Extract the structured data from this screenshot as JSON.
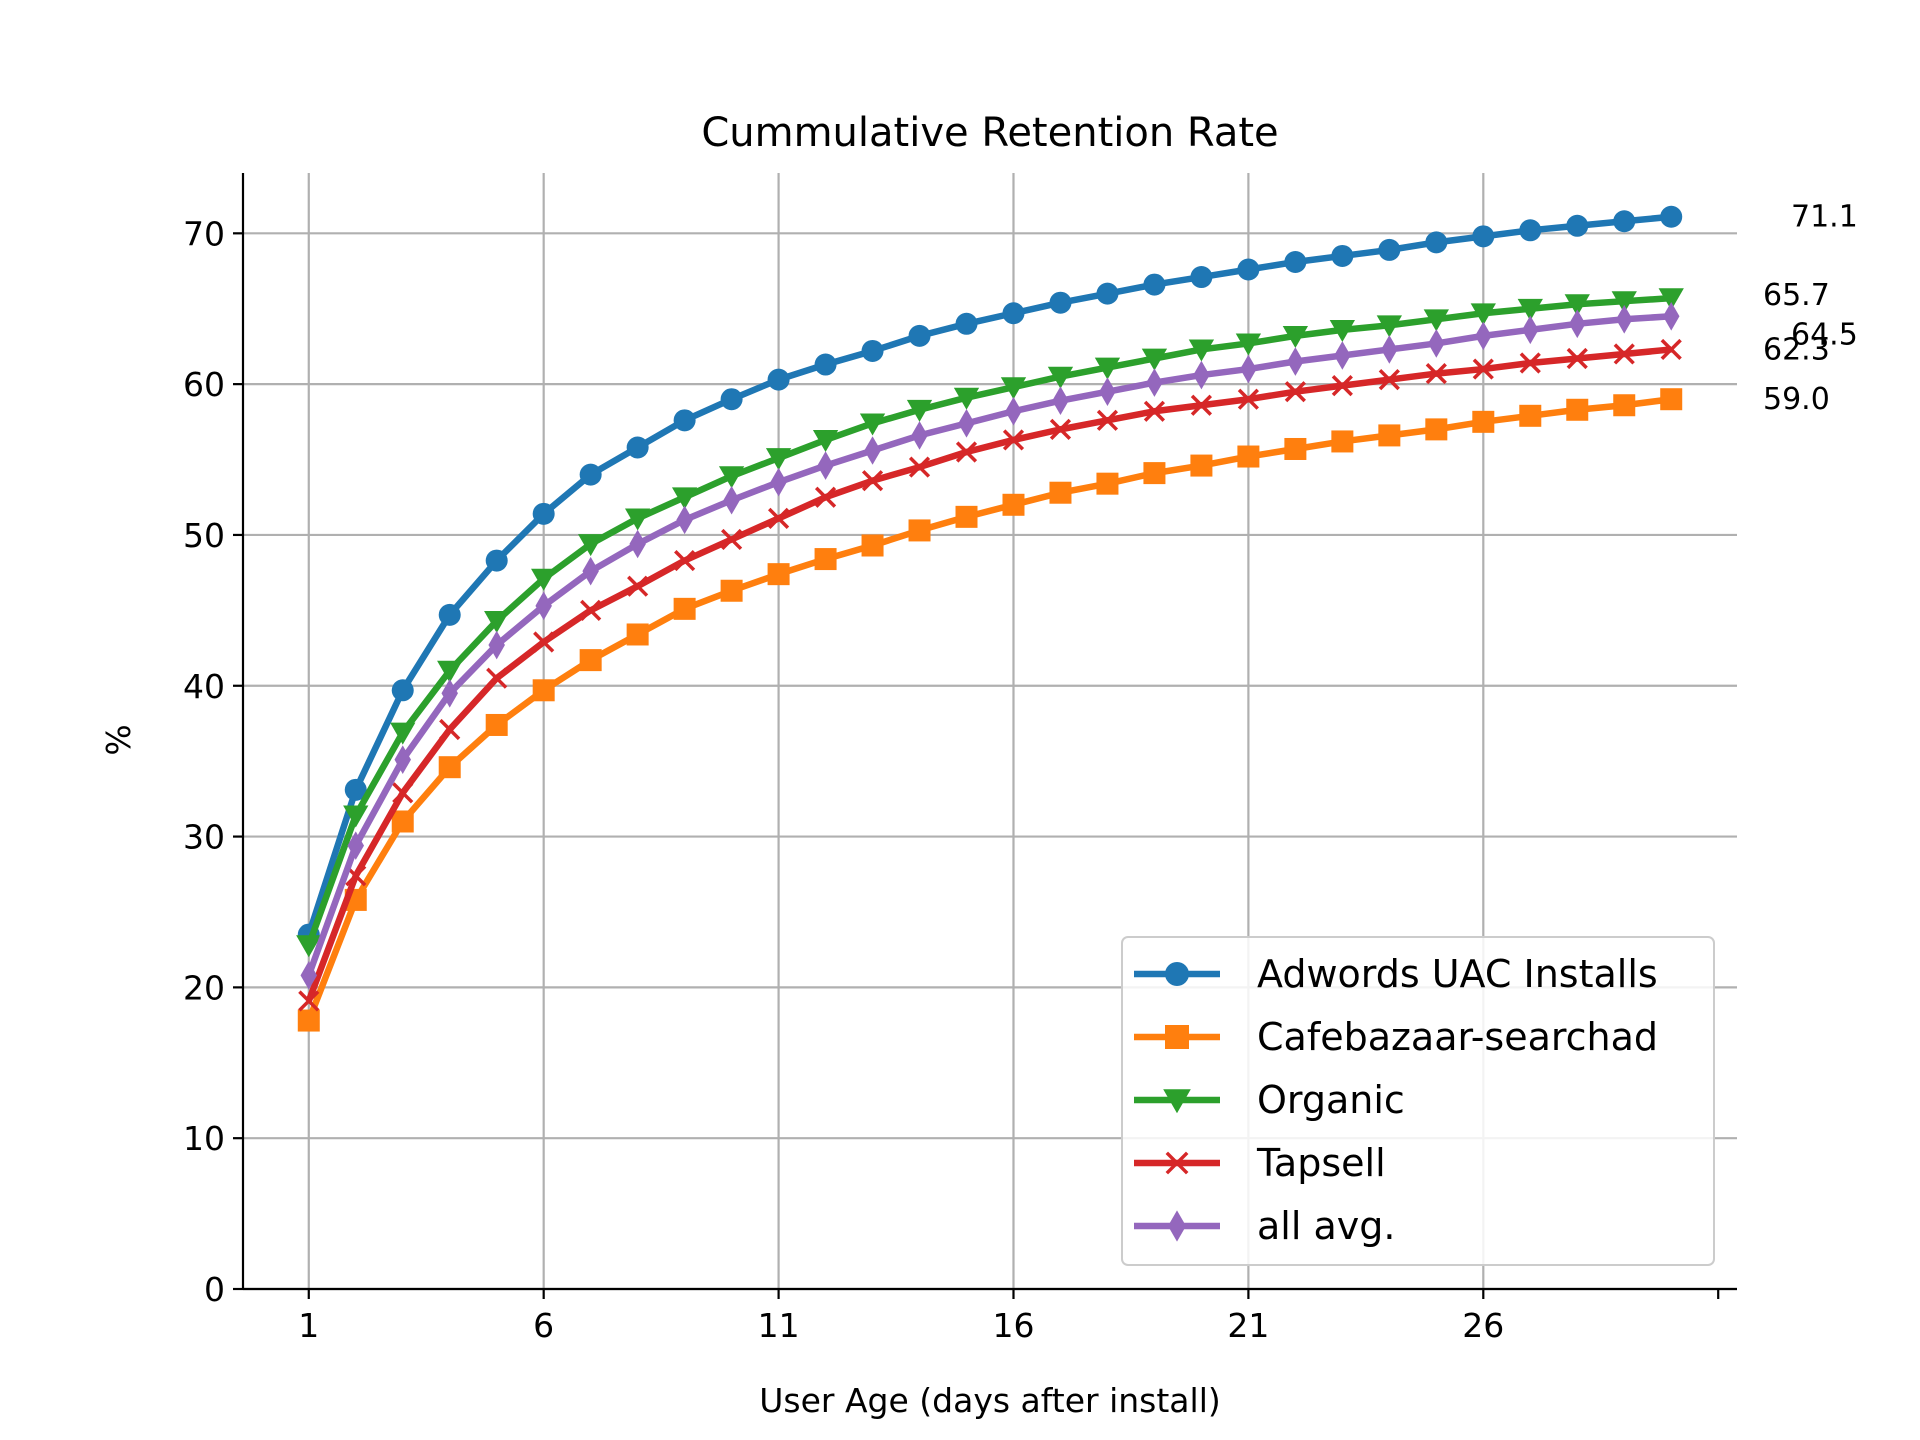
{
  "chart_data": {
    "type": "line",
    "title": "Cummulative Retention Rate",
    "xlabel": "User Age (days after install)",
    "ylabel": "%",
    "xlim": [
      -0.4,
      31.4
    ],
    "ylim": [
      0,
      74
    ],
    "x_ticks": [
      1,
      6,
      11,
      16,
      21,
      26
    ],
    "extra_x_tick": 31,
    "y_ticks": [
      0,
      10,
      20,
      30,
      40,
      50,
      60,
      70
    ],
    "grid": true,
    "legend_position": "lower-right",
    "x": [
      1,
      2,
      3,
      4,
      5,
      6,
      7,
      8,
      9,
      10,
      11,
      12,
      13,
      14,
      15,
      16,
      17,
      18,
      19,
      20,
      21,
      22,
      23,
      24,
      25,
      26,
      27,
      28,
      29,
      30
    ],
    "series": [
      {
        "name": "Adwords UAC Installs",
        "color": "#1f77b4",
        "marker": "circle",
        "values": [
          23.5,
          33.1,
          39.7,
          44.7,
          48.3,
          51.4,
          54.0,
          55.8,
          57.6,
          59.0,
          60.3,
          61.3,
          62.2,
          63.2,
          64.0,
          64.7,
          65.4,
          66.0,
          66.6,
          67.1,
          67.6,
          68.1,
          68.5,
          68.9,
          69.4,
          69.8,
          70.2,
          70.5,
          70.8,
          71.1
        ],
        "end_label": "71.1"
      },
      {
        "name": "Cafebazaar-searchad",
        "color": "#ff7f0e",
        "marker": "square",
        "values": [
          17.8,
          25.8,
          31.0,
          34.6,
          37.4,
          39.7,
          41.7,
          43.4,
          45.1,
          46.3,
          47.4,
          48.4,
          49.3,
          50.3,
          51.2,
          52.0,
          52.8,
          53.4,
          54.1,
          54.6,
          55.2,
          55.7,
          56.2,
          56.6,
          57.0,
          57.5,
          57.9,
          58.3,
          58.6,
          59.0
        ],
        "end_label": "59.0"
      },
      {
        "name": "Organic",
        "color": "#2ca02c",
        "marker": "triangle-down",
        "values": [
          22.8,
          31.4,
          36.9,
          41.0,
          44.3,
          47.1,
          49.4,
          51.1,
          52.5,
          53.9,
          55.1,
          56.3,
          57.4,
          58.3,
          59.1,
          59.8,
          60.5,
          61.1,
          61.7,
          62.3,
          62.7,
          63.2,
          63.6,
          63.9,
          64.3,
          64.7,
          65.0,
          65.3,
          65.5,
          65.7
        ],
        "end_label": "65.7"
      },
      {
        "name": "Tapsell",
        "color": "#d62728",
        "marker": "x",
        "values": [
          19.1,
          27.4,
          32.9,
          37.1,
          40.5,
          42.9,
          45.0,
          46.6,
          48.3,
          49.7,
          51.1,
          52.5,
          53.6,
          54.5,
          55.5,
          56.3,
          57.0,
          57.6,
          58.2,
          58.6,
          59.0,
          59.5,
          59.9,
          60.3,
          60.7,
          61.0,
          61.4,
          61.7,
          62.0,
          62.3
        ],
        "end_label": "62.3"
      },
      {
        "name": "all avg.",
        "color": "#9467bd",
        "marker": "thin-diamond",
        "values": [
          20.8,
          29.4,
          35.1,
          39.5,
          42.7,
          45.3,
          47.6,
          49.4,
          51.0,
          52.3,
          53.5,
          54.6,
          55.6,
          56.6,
          57.4,
          58.2,
          58.9,
          59.5,
          60.1,
          60.6,
          61.0,
          61.5,
          61.9,
          62.3,
          62.7,
          63.2,
          63.6,
          64.0,
          64.3,
          64.5
        ],
        "end_label": "64.5"
      }
    ]
  }
}
